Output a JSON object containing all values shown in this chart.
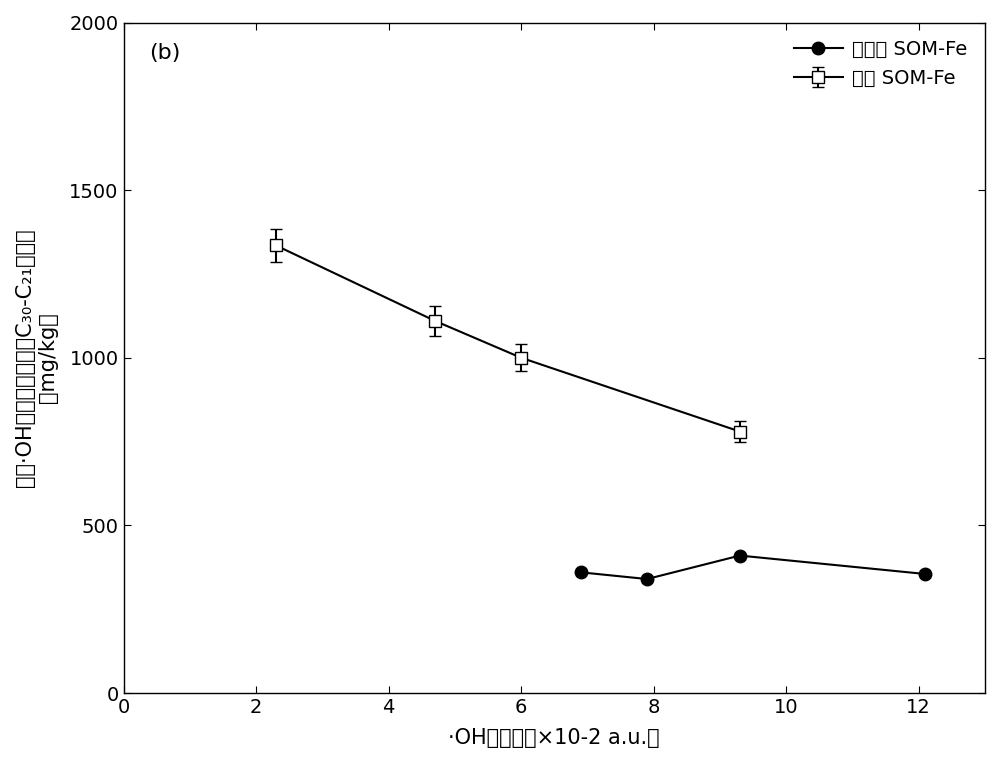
{
  "title_label": "(b)",
  "xlabel_parts": [
    "·OH的产量（×10",
    "-2",
    " a.u.）"
  ],
  "ylabel_line1": "单位·OH去除长链烷烃（C₃₀-C₂₁）的量",
  "ylabel_line2": "（mg/kg）",
  "xlim": [
    0,
    13
  ],
  "ylim": [
    0,
    2000
  ],
  "xticks": [
    0,
    2,
    4,
    6,
    8,
    10,
    12
  ],
  "yticks": [
    0,
    500,
    1000,
    1500,
    2000
  ],
  "series1_label": "閑化 SOM-Fe",
  "series1_x": [
    2.3,
    4.7,
    6.0,
    9.3
  ],
  "series1_y": [
    1335,
    1110,
    1000,
    780
  ],
  "series1_yerr": [
    50,
    45,
    40,
    30
  ],
  "series2_label": "非閑化 SOM-Fe",
  "series2_x": [
    6.9,
    7.9,
    9.3,
    12.1
  ],
  "series2_y": [
    360,
    340,
    410,
    355
  ],
  "line_color": "#000000",
  "bg_color": "#ffffff",
  "marker_size": 9,
  "linewidth": 1.5,
  "tick_fontsize": 14,
  "legend_fontsize": 14,
  "annot_fontsize": 16,
  "label_fontsize": 15
}
